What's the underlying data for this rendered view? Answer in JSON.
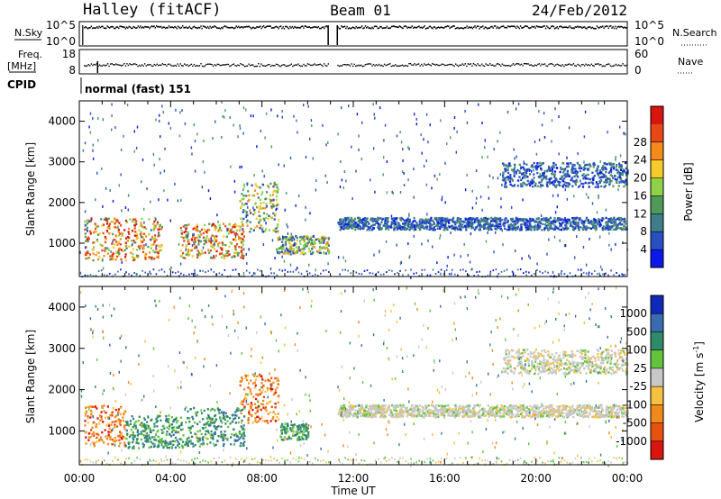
{
  "header": {
    "radar": "Halley (fitACF)",
    "beam": "Beam 01",
    "date": "24/Feb/2012"
  },
  "strips": {
    "nsky_label": "N.Sky",
    "nsky_ticks": [
      "10^5",
      "10^0"
    ],
    "nsearch_label": "N.Search",
    "nsearch_ticks": [
      "10^5",
      "10^0"
    ],
    "freq_label": "Freq.",
    "freq_unit": "[MHz]",
    "freq_ticks": [
      "18",
      "8"
    ],
    "nave_label": "Nave",
    "nave_ticks": [
      "60",
      "0"
    ],
    "cpid_label": "CPID",
    "cpid_value": "normal (fast) 151"
  },
  "chart_data": [
    {
      "type": "heatmap",
      "name": "power",
      "ylabel": "Slant Range [km]",
      "ylim": [
        180,
        4500
      ],
      "yticks": [
        1000,
        2000,
        3000,
        4000
      ],
      "xlim": [
        0,
        24
      ],
      "xticks": [
        "00:00",
        "04:00",
        "08:00",
        "12:00",
        "16:00",
        "20:00",
        "00:00"
      ],
      "colorbar_label": "Power [dB]",
      "colorbar_ticks": [
        "4",
        "8",
        "12",
        "16",
        "20",
        "24",
        "28"
      ],
      "colorbar_colors": [
        "#0a18e8",
        "#2a4fc4",
        "#3e7d8a",
        "#4f9a5a",
        "#8fd24a",
        "#f6cc2a",
        "#f48a1c",
        "#e84818",
        "#d8150f"
      ],
      "data_gap_hours": [
        10.9,
        11.3
      ],
      "regions": [
        {
          "t0": 0.2,
          "t1": 3.6,
          "r0": 600,
          "r1": 1650,
          "power": "high"
        },
        {
          "t0": 4.4,
          "t1": 7.2,
          "r0": 650,
          "r1": 1500,
          "power": "high"
        },
        {
          "t0": 7.0,
          "t1": 8.7,
          "r0": 1300,
          "r1": 2500,
          "power": "medium"
        },
        {
          "t0": 8.6,
          "t1": 10.9,
          "r0": 750,
          "r1": 1200,
          "power": "medium"
        },
        {
          "t0": 11.3,
          "t1": 24.0,
          "r0": 1350,
          "r1": 1650,
          "power": "low"
        },
        {
          "t0": 18.5,
          "t1": 24.0,
          "r0": 2400,
          "r1": 3000,
          "power": "low"
        }
      ]
    },
    {
      "type": "heatmap",
      "name": "velocity",
      "ylabel": "Slant Range [km]",
      "ylim": [
        180,
        4500
      ],
      "yticks": [
        1000,
        2000,
        3000,
        4000
      ],
      "xlim": [
        0,
        24
      ],
      "xlabel": "Time UT",
      "xticks": [
        "00:00",
        "04:00",
        "08:00",
        "12:00",
        "16:00",
        "20:00",
        "00:00"
      ],
      "colorbar_label": "Velocity [m s",
      "colorbar_unit_sup": "-1",
      "colorbar_label_close": "]",
      "colorbar_ticks": [
        "1000",
        "500",
        "100",
        "25",
        "-25",
        "-100",
        "-500",
        "-1000"
      ],
      "colorbar_colors": [
        "#1028b8",
        "#3a6ab0",
        "#2f8a6a",
        "#63c43c",
        "#c8c8c8",
        "#f6c040",
        "#f08a1c",
        "#e8520f",
        "#d8150f"
      ],
      "data_gap_hours": [
        10.9,
        11.3
      ],
      "regions": [
        {
          "t0": 0.2,
          "t1": 2.0,
          "r0": 650,
          "r1": 1650,
          "velocity": "negative"
        },
        {
          "t0": 2.0,
          "t1": 4.6,
          "r0": 600,
          "r1": 1400,
          "velocity": "positive"
        },
        {
          "t0": 4.6,
          "t1": 7.2,
          "r0": 650,
          "r1": 1600,
          "velocity": "positive"
        },
        {
          "t0": 7.0,
          "t1": 8.7,
          "r0": 1200,
          "r1": 2400,
          "velocity": "negative"
        },
        {
          "t0": 8.8,
          "t1": 10.0,
          "r0": 800,
          "r1": 1200,
          "velocity": "positive"
        },
        {
          "t0": 11.3,
          "t1": 24.0,
          "r0": 1350,
          "r1": 1650,
          "velocity": "near-zero"
        },
        {
          "t0": 18.5,
          "t1": 24.0,
          "r0": 2400,
          "r1": 3000,
          "velocity": "near-zero"
        }
      ]
    }
  ]
}
